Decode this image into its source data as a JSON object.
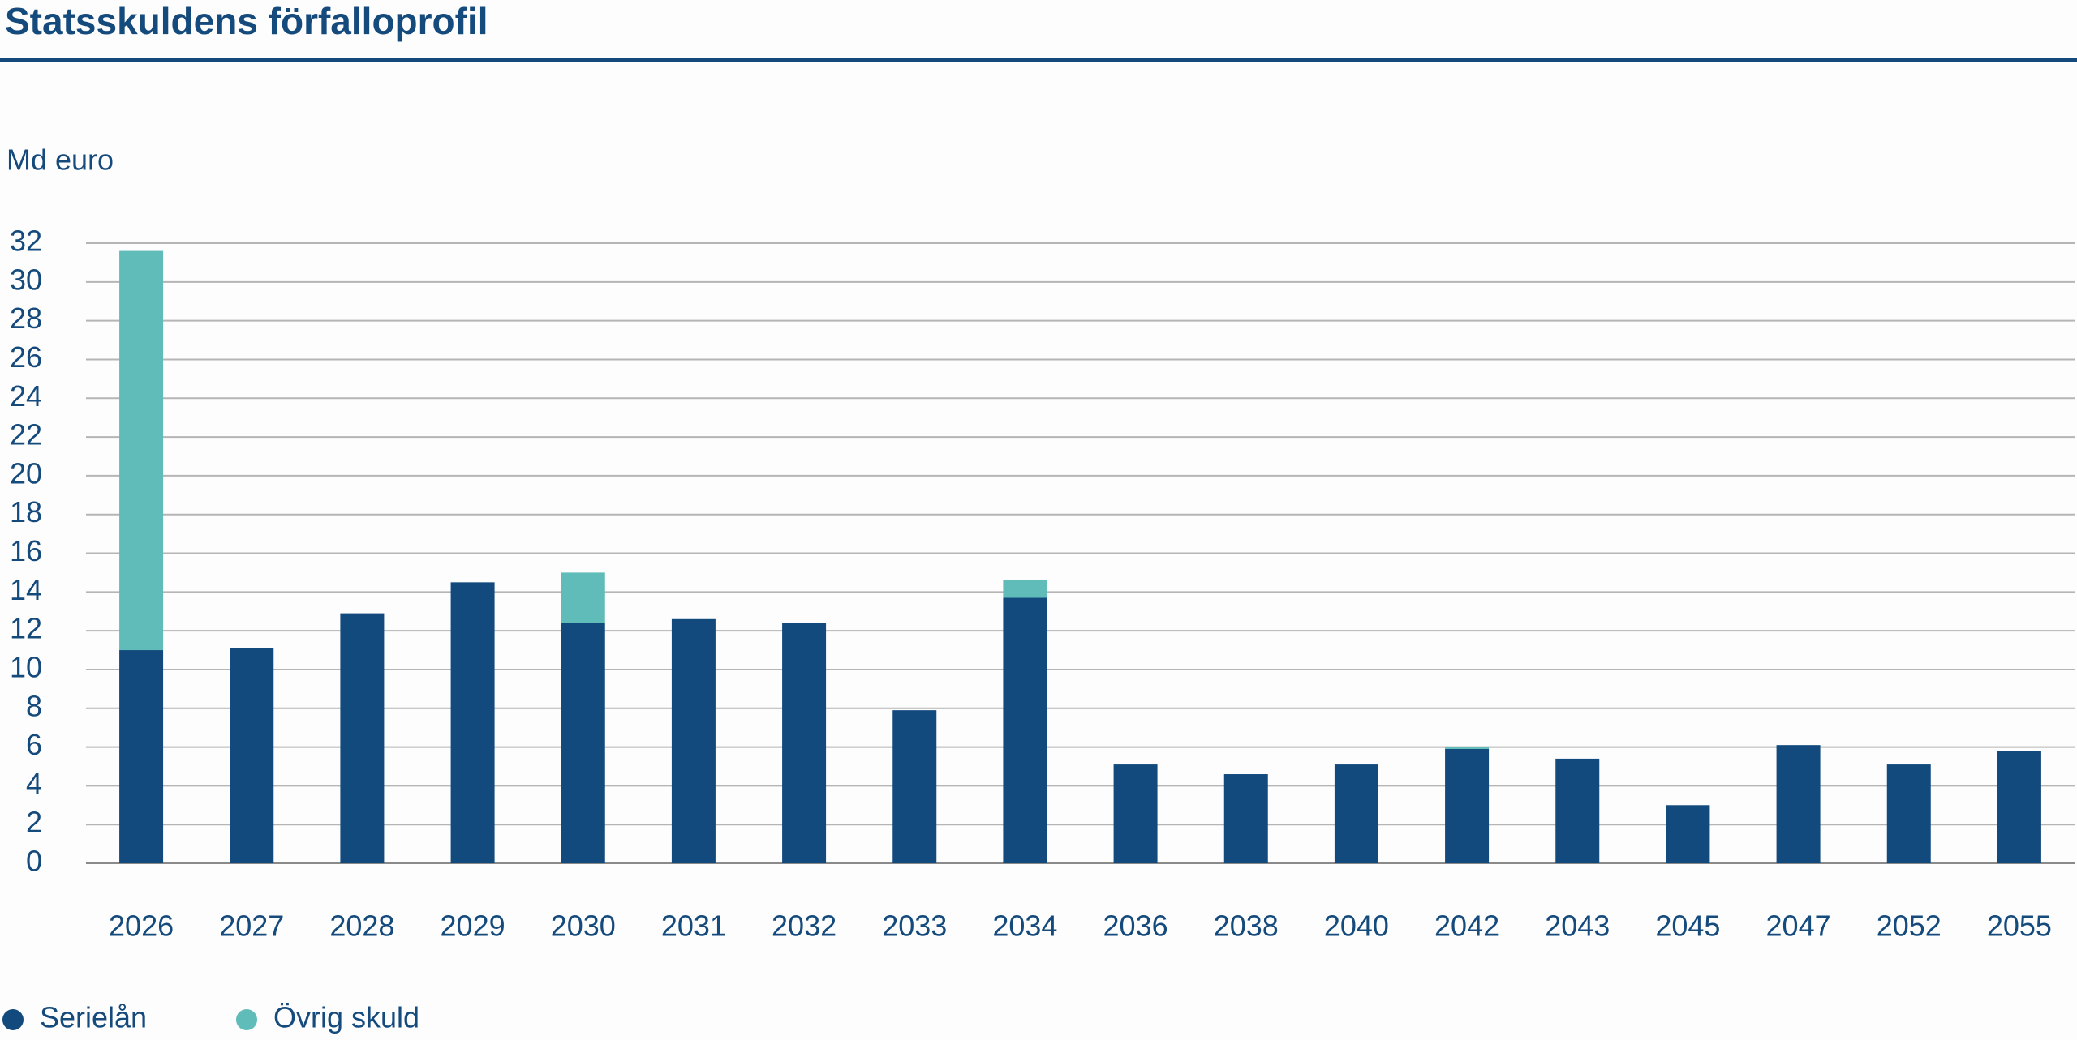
{
  "chart_data": {
    "type": "stacked_bar",
    "title": "Statsskuldens förfalloprofil",
    "y_label": "Md euro",
    "categories": [
      "2026",
      "2027",
      "2028",
      "2029",
      "2030",
      "2031",
      "2032",
      "2033",
      "2034",
      "2036",
      "2038",
      "2040",
      "2042",
      "2043",
      "2045",
      "2047",
      "2052",
      "2055"
    ],
    "series": [
      {
        "name": "Serielån",
        "color": "#124a7e",
        "values": [
          11.0,
          11.1,
          12.9,
          14.5,
          12.4,
          12.6,
          12.4,
          7.9,
          13.7,
          5.1,
          4.6,
          5.1,
          5.9,
          5.4,
          3.0,
          6.1,
          5.1,
          5.8
        ]
      },
      {
        "name": "Övrig skuld",
        "color": "#5fbcb8",
        "values": [
          20.6,
          0,
          0,
          0,
          2.6,
          0,
          0,
          0,
          0.9,
          0,
          0,
          0,
          0.1,
          0,
          0,
          0,
          0,
          0
        ]
      }
    ],
    "ylim": [
      0,
      32
    ],
    "yticks": [
      0,
      2,
      4,
      6,
      8,
      10,
      12,
      14,
      16,
      18,
      20,
      22,
      24,
      26,
      28,
      30,
      32
    ],
    "grid": true,
    "legend": "bottom-left"
  }
}
